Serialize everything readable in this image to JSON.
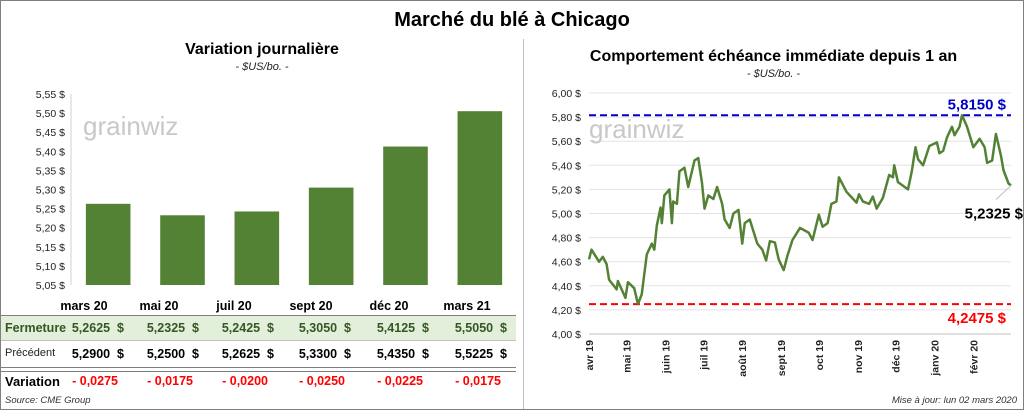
{
  "title": "Marché du blé à Chicago",
  "colors": {
    "bar": "#548235",
    "line": "#548235",
    "max_line": "#0000cc",
    "min_line": "#ff0000",
    "fermeture_bg": "#e2efda",
    "variation": "#ff0000"
  },
  "watermark": "grainwiz",
  "chart_data": [
    {
      "type": "bar",
      "title": "Variation journalière",
      "subtitle": "- $US/bo. -",
      "categories": [
        "mars 20",
        "mai 20",
        "juil 20",
        "sept 20",
        "déc 20",
        "mars 21"
      ],
      "values": [
        5.2625,
        5.2325,
        5.2425,
        5.305,
        5.4125,
        5.505
      ],
      "ylim": [
        5.05,
        5.55
      ],
      "yticks": [
        "5,05 $",
        "5,10 $",
        "5,15 $",
        "5,20 $",
        "5,25 $",
        "5,30 $",
        "5,35 $",
        "5,40 $",
        "5,45 $",
        "5,50 $",
        "5,55 $"
      ],
      "grid": false
    },
    {
      "type": "line",
      "title": "Comportement  échéance immédiate depuis 1 an",
      "subtitle": "- $US/bo. -",
      "ylim": [
        4.0,
        6.0
      ],
      "yticks": [
        "4,00 $",
        "4,20 $",
        "4,40 $",
        "4,60 $",
        "4,80 $",
        "5,00 $",
        "5,20 $",
        "5,40 $",
        "5,60 $",
        "5,80 $",
        "6,00 $"
      ],
      "xticks": [
        {
          "date": "2019-04-01",
          "label": "avr 19"
        },
        {
          "date": "2019-05-01",
          "label": "mai 19"
        },
        {
          "date": "2019-06-01",
          "label": "juin 19"
        },
        {
          "date": "2019-07-01",
          "label": "juil 19"
        },
        {
          "date": "2019-08-01",
          "label": "août 19"
        },
        {
          "date": "2019-09-01",
          "label": "sept 19"
        },
        {
          "date": "2019-10-01",
          "label": "oct 19"
        },
        {
          "date": "2019-11-01",
          "label": "nov 19"
        },
        {
          "date": "2019-12-01",
          "label": "déc 19"
        },
        {
          "date": "2020-01-01",
          "label": "janv 20"
        },
        {
          "date": "2020-02-01",
          "label": "févr 20"
        }
      ],
      "grid": true,
      "max": {
        "value": 5.815,
        "label": "5,8150 $"
      },
      "min": {
        "value": 4.2475,
        "label": "4,2475 $"
      },
      "last": {
        "value": 5.2325,
        "label": "5,2325 $"
      },
      "series": [
        [
          "2019-04-01",
          4.62
        ],
        [
          "2019-04-03",
          4.7
        ],
        [
          "2019-04-09",
          4.6
        ],
        [
          "2019-04-12",
          4.64
        ],
        [
          "2019-04-15",
          4.58
        ],
        [
          "2019-04-17",
          4.45
        ],
        [
          "2019-04-23",
          4.37
        ],
        [
          "2019-04-24",
          4.44
        ],
        [
          "2019-04-30",
          4.3
        ],
        [
          "2019-05-02",
          4.43
        ],
        [
          "2019-05-07",
          4.38
        ],
        [
          "2019-05-10",
          4.2475
        ],
        [
          "2019-05-13",
          4.33
        ],
        [
          "2019-05-17",
          4.66
        ],
        [
          "2019-05-21",
          4.75
        ],
        [
          "2019-05-23",
          4.7
        ],
        [
          "2019-05-25",
          4.9
        ],
        [
          "2019-05-28",
          5.05
        ],
        [
          "2019-05-29",
          4.92
        ],
        [
          "2019-05-31",
          5.15
        ],
        [
          "2019-06-04",
          5.2
        ],
        [
          "2019-06-06",
          4.92
        ],
        [
          "2019-06-07",
          5.1
        ],
        [
          "2019-06-10",
          5.08
        ],
        [
          "2019-06-12",
          5.35
        ],
        [
          "2019-06-16",
          5.38
        ],
        [
          "2019-06-19",
          5.22
        ],
        [
          "2019-06-24",
          5.44
        ],
        [
          "2019-06-27",
          5.46
        ],
        [
          "2019-06-30",
          5.25
        ],
        [
          "2019-07-02",
          5.04
        ],
        [
          "2019-07-05",
          5.15
        ],
        [
          "2019-07-09",
          5.12
        ],
        [
          "2019-07-12",
          5.22
        ],
        [
          "2019-07-16",
          5.08
        ],
        [
          "2019-07-18",
          4.95
        ],
        [
          "2019-07-22",
          4.88
        ],
        [
          "2019-07-25",
          5.0
        ],
        [
          "2019-07-29",
          5.03
        ],
        [
          "2019-08-01",
          4.75
        ],
        [
          "2019-08-03",
          4.92
        ],
        [
          "2019-08-07",
          4.95
        ],
        [
          "2019-08-13",
          4.75
        ],
        [
          "2019-08-17",
          4.7
        ],
        [
          "2019-08-20",
          4.61
        ],
        [
          "2019-08-23",
          4.77
        ],
        [
          "2019-08-27",
          4.76
        ],
        [
          "2019-08-30",
          4.62
        ],
        [
          "2019-09-03",
          4.53
        ],
        [
          "2019-09-06",
          4.65
        ],
        [
          "2019-09-10",
          4.78
        ],
        [
          "2019-09-16",
          4.88
        ],
        [
          "2019-09-23",
          4.84
        ],
        [
          "2019-09-26",
          4.78
        ],
        [
          "2019-10-01",
          4.99
        ],
        [
          "2019-10-04",
          4.89
        ],
        [
          "2019-10-08",
          4.92
        ],
        [
          "2019-10-11",
          5.08
        ],
        [
          "2019-10-15",
          5.1
        ],
        [
          "2019-10-17",
          5.3
        ],
        [
          "2019-10-23",
          5.18
        ],
        [
          "2019-10-31",
          5.09
        ],
        [
          "2019-11-02",
          5.16
        ],
        [
          "2019-11-05",
          5.1
        ],
        [
          "2019-11-10",
          5.08
        ],
        [
          "2019-11-13",
          5.14
        ],
        [
          "2019-11-16",
          5.04
        ],
        [
          "2019-11-21",
          5.13
        ],
        [
          "2019-11-26",
          5.32
        ],
        [
          "2019-11-29",
          5.3
        ],
        [
          "2019-11-30",
          5.4
        ],
        [
          "2019-12-03",
          5.26
        ],
        [
          "2019-12-11",
          5.2
        ],
        [
          "2019-12-14",
          5.35
        ],
        [
          "2019-12-17",
          5.55
        ],
        [
          "2019-12-19",
          5.45
        ],
        [
          "2019-12-23",
          5.4
        ],
        [
          "2019-12-28",
          5.56
        ],
        [
          "2020-01-03",
          5.59
        ],
        [
          "2020-01-05",
          5.5
        ],
        [
          "2020-01-08",
          5.52
        ],
        [
          "2020-01-11",
          5.63
        ],
        [
          "2020-01-15",
          5.72
        ],
        [
          "2020-01-17",
          5.65
        ],
        [
          "2020-01-21",
          5.72
        ],
        [
          "2020-01-23",
          5.815
        ],
        [
          "2020-01-27",
          5.72
        ],
        [
          "2020-02-01",
          5.55
        ],
        [
          "2020-02-06",
          5.62
        ],
        [
          "2020-02-10",
          5.55
        ],
        [
          "2020-02-12",
          5.42
        ],
        [
          "2020-02-16",
          5.44
        ],
        [
          "2020-02-19",
          5.66
        ],
        [
          "2020-02-23",
          5.48
        ],
        [
          "2020-02-25",
          5.36
        ],
        [
          "2020-02-29",
          5.25
        ],
        [
          "2020-03-02",
          5.2325
        ]
      ]
    }
  ],
  "table": {
    "headers": [
      "mars 20",
      "mai 20",
      "juil 20",
      "sept 20",
      "déc 20",
      "mars 21"
    ],
    "rows": [
      {
        "label": "Fermeture",
        "values": [
          "5,2625  $",
          "5,2325  $",
          "5,2425  $",
          "5,3050  $",
          "5,4125  $",
          "5,5050  $"
        ]
      },
      {
        "label": "Précédent",
        "values": [
          "5,2900  $",
          "5,2500  $",
          "5,2625  $",
          "5,3300  $",
          "5,4350  $",
          "5,5225  $"
        ]
      },
      {
        "label": "Variation",
        "values": [
          "- 0,0275",
          "- 0,0175",
          "- 0,0200",
          "- 0,0250",
          "- 0,0225",
          "- 0,0175"
        ]
      }
    ]
  },
  "footer": {
    "source": "Source: CME Group",
    "updated": "Mise à jour: lun 02 mars 2020"
  }
}
